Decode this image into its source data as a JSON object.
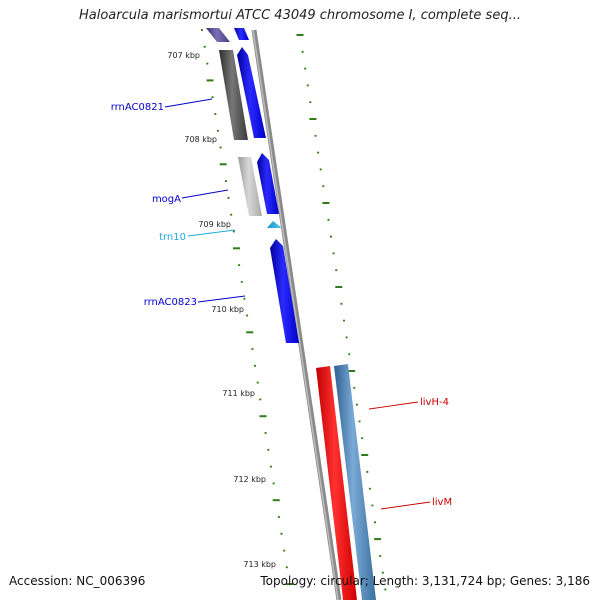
{
  "title": "Haloarcula marismortui ATCC 43049 chromosome I, complete seq...",
  "footer": {
    "accession": "Accession: NC_006396",
    "summary": "Topology: circular; Length: 3,131,724 bp; Genes: 3,186"
  },
  "colors": {
    "backbone": "#8a8a8a",
    "tick": "#2e7d1a",
    "gene_blue": "#0000ee",
    "gene_dark": "#4b4b4b",
    "gene_light": "#b5b5b5",
    "gene_red": "#ee0000",
    "gene_steel": "#4a7fb0",
    "gene_navy": "#55488f",
    "label_blue": "#0000cc",
    "label_cyan": "#22aadd",
    "label_red": "#cc0000"
  },
  "kbp_labels": [
    "707 kbp",
    "708 kbp",
    "709 kbp",
    "710 kbp",
    "711 kbp",
    "712 kbp",
    "713 kbp"
  ],
  "genes": [
    {
      "name": "rrnAC0821",
      "color": "label_blue"
    },
    {
      "name": "mogA",
      "color": "label_blue"
    },
    {
      "name": "trn10",
      "color": "label_cyan"
    },
    {
      "name": "rrnAC0823",
      "color": "label_blue"
    },
    {
      "name": "livH-4",
      "color": "label_red"
    },
    {
      "name": "livM",
      "color": "label_red"
    }
  ]
}
